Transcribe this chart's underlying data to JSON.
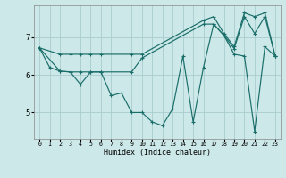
{
  "xlabel": "Humidex (Indice chaleur)",
  "bg_color": "#cce8e8",
  "line_color": "#1a6e6a",
  "grid_color": "#aacccc",
  "xlim": [
    -0.5,
    23.5
  ],
  "ylim": [
    4.3,
    7.85
  ],
  "yticks": [
    5,
    6,
    7
  ],
  "xticks": [
    0,
    1,
    2,
    3,
    4,
    5,
    6,
    7,
    8,
    9,
    10,
    11,
    12,
    13,
    14,
    15,
    16,
    17,
    18,
    19,
    20,
    21,
    22,
    23
  ],
  "line1_x": [
    0,
    1,
    2,
    3,
    4,
    5,
    6,
    7,
    8,
    9,
    10,
    11,
    12,
    13,
    14,
    15,
    16,
    17,
    18,
    19,
    20,
    21,
    22,
    23
  ],
  "line1_y": [
    6.72,
    6.2,
    6.1,
    6.08,
    5.75,
    6.08,
    6.08,
    5.45,
    5.52,
    5.0,
    5.0,
    4.75,
    4.65,
    5.1,
    6.5,
    4.75,
    6.2,
    7.35,
    7.05,
    6.55,
    6.5,
    4.5,
    6.75,
    6.5
  ],
  "line2_x": [
    0,
    2,
    3,
    4,
    5,
    6,
    9,
    10,
    16,
    17,
    18,
    19,
    20,
    21,
    22,
    23
  ],
  "line2_y": [
    6.72,
    6.1,
    6.08,
    6.08,
    6.08,
    6.08,
    6.08,
    6.45,
    7.35,
    7.35,
    7.05,
    6.7,
    7.55,
    7.1,
    7.55,
    6.5
  ],
  "line3_x": [
    0,
    2,
    3,
    4,
    5,
    6,
    9,
    10,
    16,
    17,
    18,
    19,
    20,
    21,
    22,
    23
  ],
  "line3_y": [
    6.72,
    6.55,
    6.55,
    6.55,
    6.55,
    6.55,
    6.55,
    6.55,
    7.45,
    7.55,
    7.1,
    6.75,
    7.65,
    7.55,
    7.65,
    6.5
  ]
}
